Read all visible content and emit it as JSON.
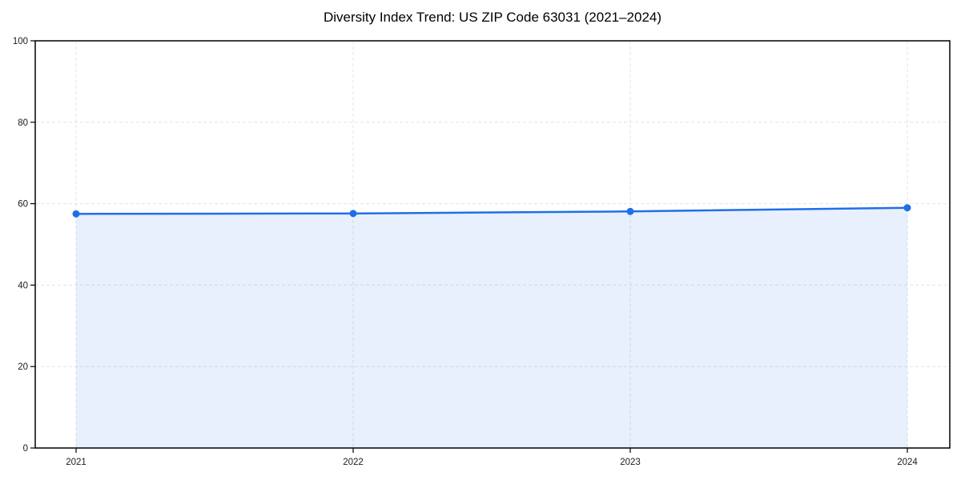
{
  "page": {
    "background": "#ffffff"
  },
  "chart_data": {
    "type": "area",
    "title": "Diversity Index Trend: US ZIP Code 63031 (2021–2024)",
    "categories": [
      "2021",
      "2022",
      "2023",
      "2024"
    ],
    "values": [
      57.5,
      57.6,
      58.1,
      59.0
    ],
    "xlabel": "",
    "ylabel": "",
    "ylim": [
      0,
      100
    ],
    "y_ticks": [
      0,
      20,
      40,
      60,
      80,
      100
    ],
    "grid": true,
    "grid_style": "dashed",
    "legend_position": "none",
    "marker": "circle",
    "colors": {
      "line": "#1f6fe8",
      "marker": "#1f6fe8",
      "fill": "rgba(31,111,232,0.10)",
      "grid": "#e3e3e3",
      "axis": "#000000",
      "tick_text": "#1a1a1a",
      "title_text": "#000000"
    }
  }
}
